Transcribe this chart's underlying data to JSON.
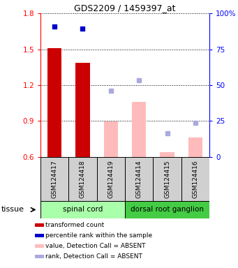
{
  "title": "GDS2209 / 1459397_at",
  "samples": [
    "GSM124417",
    "GSM124418",
    "GSM124419",
    "GSM124414",
    "GSM124415",
    "GSM124416"
  ],
  "bar_values": [
    1.507,
    1.385,
    0.898,
    1.06,
    0.637,
    0.762
  ],
  "bar_colors": [
    "#cc0000",
    "#cc0000",
    "#ffbbbb",
    "#ffbbbb",
    "#ffbbbb",
    "#ffbbbb"
  ],
  "blue_dot_values": [
    1.69,
    1.67,
    null,
    null,
    null,
    null
  ],
  "light_blue_dot_values": [
    null,
    null,
    1.155,
    1.24,
    0.795,
    0.885
  ],
  "ylim_left": [
    0.6,
    1.8
  ],
  "ylim_right": [
    0,
    100
  ],
  "yticks_left": [
    0.6,
    0.9,
    1.2,
    1.5,
    1.8
  ],
  "yticks_right": [
    0,
    25,
    50,
    75,
    100
  ],
  "ytick_right_labels": [
    "0",
    "25",
    "50",
    "75",
    "100%"
  ],
  "spinal_cord_color": "#aaffaa",
  "drg_color": "#44cc44",
  "bar_width": 0.5,
  "fig_width": 3.41,
  "fig_height": 3.84,
  "dpi": 100
}
